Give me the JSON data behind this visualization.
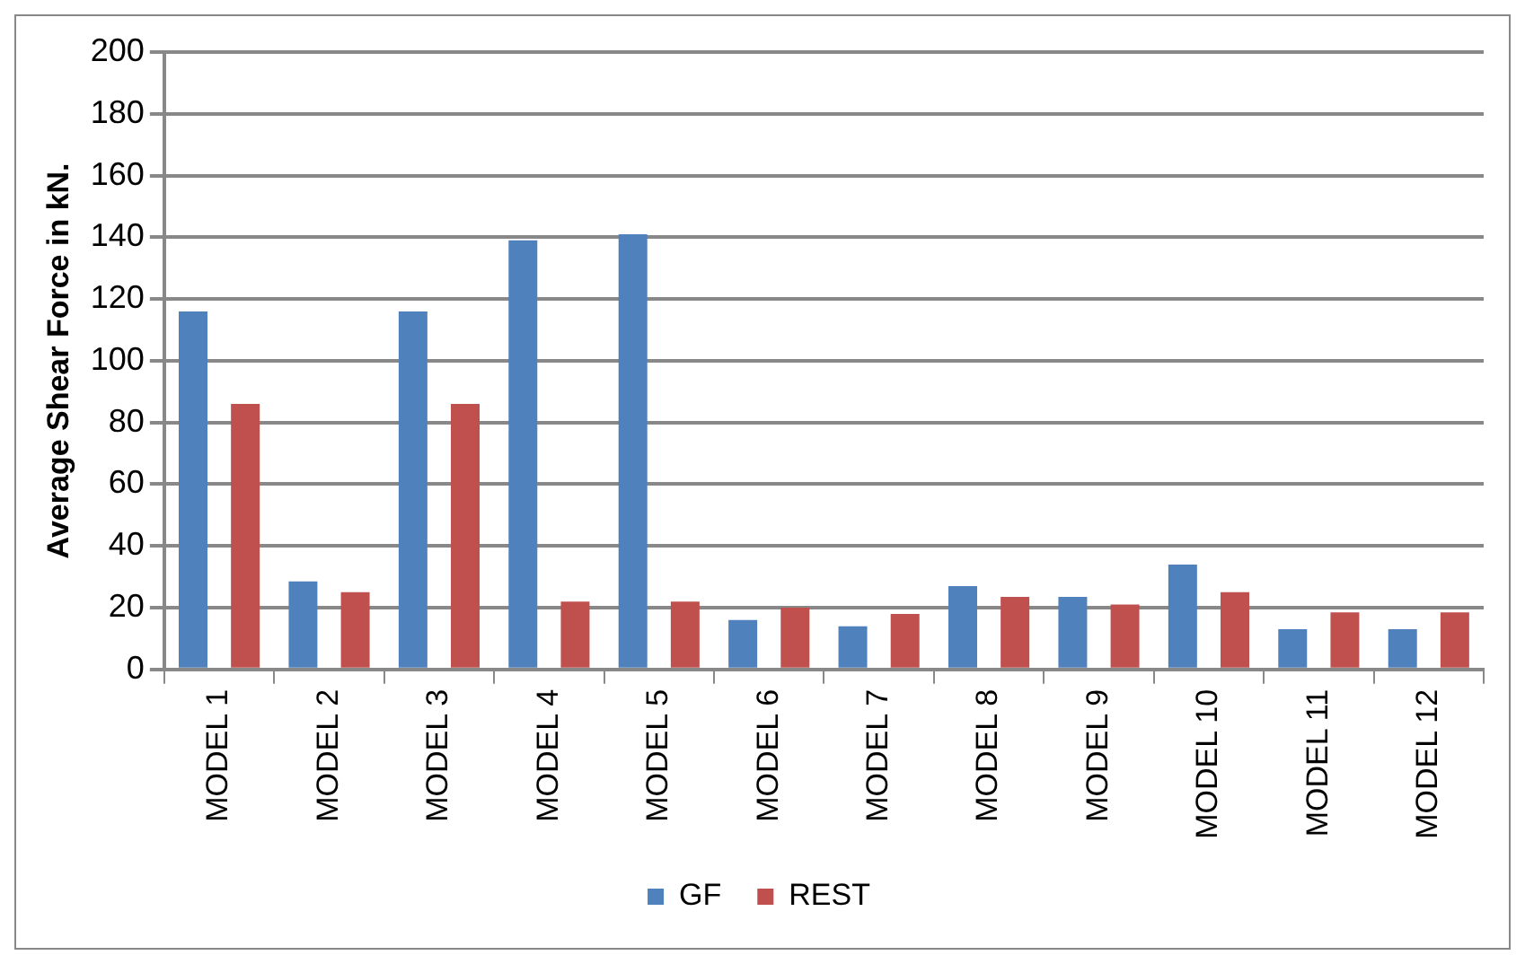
{
  "chart_data": {
    "type": "bar",
    "ylabel": "Average Shear Force in kN.",
    "categories": [
      "MODEL 1",
      "MODEL 2",
      "MODEL 3",
      "MODEL 4",
      "MODEL 5",
      "MODEL 6",
      "MODEL 7",
      "MODEL 8",
      "MODEL 9",
      "MODEL 10",
      "MODEL 11",
      "MODEL 12"
    ],
    "series": [
      {
        "name": "GF",
        "color": "#4f81bd",
        "values": [
          116,
          28.5,
          116,
          139,
          141,
          16,
          14,
          27,
          23.5,
          34,
          13,
          13
        ]
      },
      {
        "name": "REST",
        "color": "#c0504d",
        "values": [
          86,
          25,
          86,
          22,
          22,
          20,
          18,
          23.5,
          21,
          25,
          18.5,
          18.5
        ]
      }
    ],
    "ylim": [
      0,
      200
    ],
    "yticks": [
      0,
      20,
      40,
      60,
      80,
      100,
      120,
      140,
      160,
      180,
      200
    ],
    "grid": "y",
    "legend": "bottom"
  }
}
